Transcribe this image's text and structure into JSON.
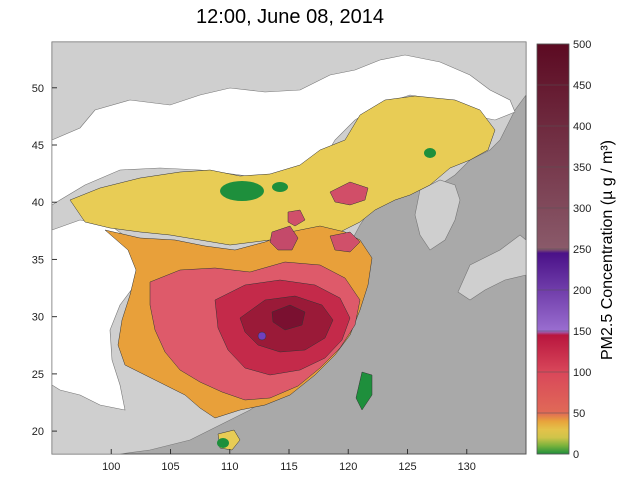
{
  "title": "12:00, June 08, 2014",
  "map": {
    "x_ticks": [
      "100",
      "105",
      "110",
      "115",
      "120",
      "125",
      "130"
    ],
    "y_ticks": [
      "20",
      "25",
      "30",
      "35",
      "40",
      "45",
      "50"
    ],
    "lon_range": [
      95,
      135
    ],
    "lat_range": [
      18,
      54
    ]
  },
  "colorbar": {
    "title": "PM2.5 Concentration (µ g / m³)",
    "tick_labels": [
      "0",
      "50",
      "100",
      "150",
      "200",
      "250",
      "300",
      "350",
      "400",
      "450",
      "500"
    ],
    "range": [
      0,
      500
    ],
    "colors": {
      "0_10": "#1e8f3c",
      "10_20": "#79b23c",
      "20_30": "#cfc44a",
      "30_40": "#e4c24a",
      "40_50": "#e8a33b",
      "50_75": "#e16a57",
      "75_100": "#d9475a",
      "100_150": "#b8163e",
      "150_250": "#6a2aa0",
      "250_500": "#5c1020"
    }
  }
}
